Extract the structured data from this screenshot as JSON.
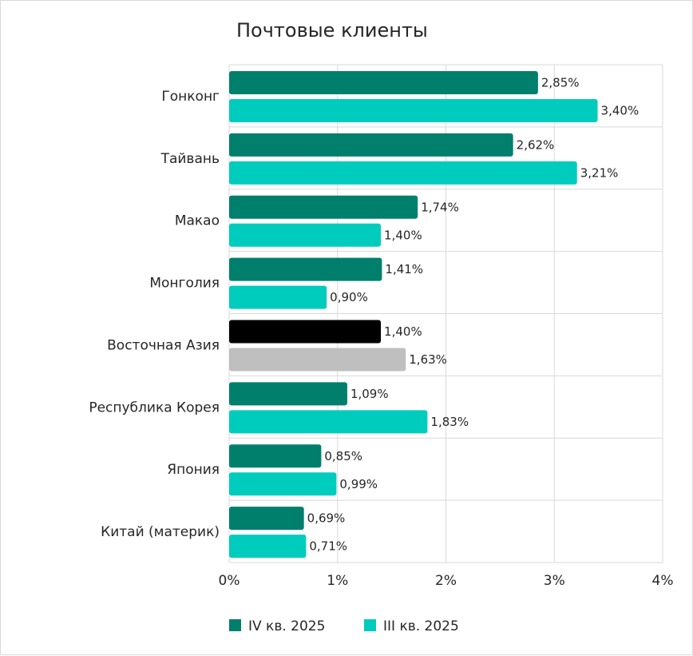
{
  "chart_data": {
    "type": "bar",
    "orientation": "horizontal",
    "title": "Почтовые клиенты",
    "categories": [
      "Гонконг",
      "Тайвань",
      "Макао",
      "Монголия",
      "Восточная Азия",
      "Республика Корея",
      "Япония",
      "Китай (материк)"
    ],
    "series": [
      {
        "name": "IV кв. 2025",
        "color": "#007f6d",
        "values": [
          2.85,
          2.62,
          1.74,
          1.41,
          1.4,
          1.09,
          0.85,
          0.69
        ],
        "labels": [
          "2,85%",
          "2,62%",
          "1,74%",
          "1,41%",
          "1,40%",
          "1,09%",
          "0,85%",
          "0,69%"
        ]
      },
      {
        "name": "III кв. 2025",
        "color": "#00ccbe",
        "values": [
          3.4,
          3.21,
          1.4,
          0.9,
          1.63,
          1.83,
          0.99,
          0.71
        ],
        "labels": [
          "3,40%",
          "3,21%",
          "1,40%",
          "0,90%",
          "1,63%",
          "1,83%",
          "0,99%",
          "0,71%"
        ]
      }
    ],
    "highlight": {
      "category": "Восточная Азия",
      "colors": [
        "#000000",
        "#bfbfbf"
      ]
    },
    "xlim": [
      0,
      4
    ],
    "xticks": [
      0,
      1,
      2,
      3,
      4
    ],
    "xtick_labels": [
      "0%",
      "1%",
      "2%",
      "3%",
      "4%"
    ],
    "grid": true,
    "legend_position": "bottom"
  }
}
